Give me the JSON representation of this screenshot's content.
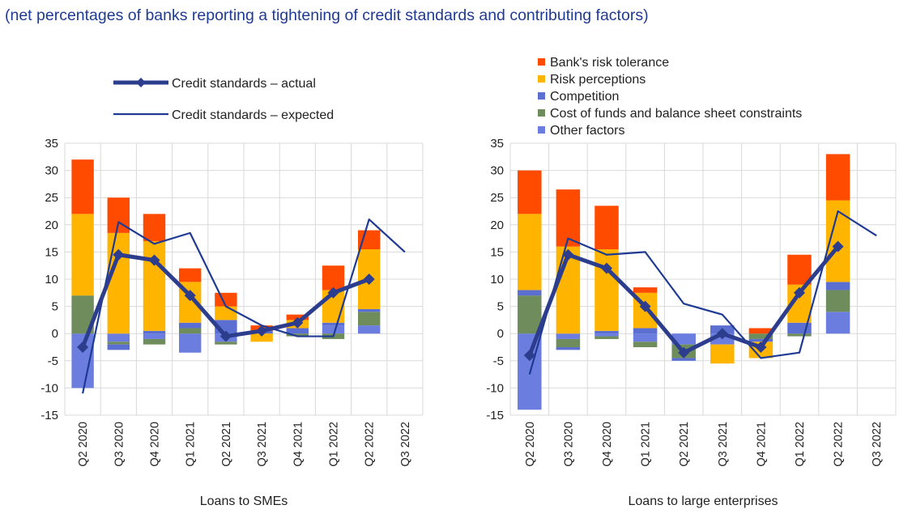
{
  "subtitle": "(net percentages of banks reporting a tightening of credit standards and contributing factors)",
  "colors": {
    "banks_risk_tolerance": "#ff4b00",
    "risk_perceptions": "#ffb400",
    "competition": "#5b6fd3",
    "cost_of_funds": "#6f8c5c",
    "other_factors": "#6b7ee0",
    "actual": "#2b3d8c",
    "expected": "#1f3a93",
    "grid": "#d9d9d9"
  },
  "legend_lines": [
    {
      "label": "Credit standards – actual",
      "style": "actual"
    },
    {
      "label": "Credit standards – expected",
      "style": "expected"
    }
  ],
  "legend_factors": [
    {
      "label": "Bank's risk tolerance",
      "color_key": "banks_risk_tolerance"
    },
    {
      "label": "Risk perceptions",
      "color_key": "risk_perceptions"
    },
    {
      "label": "Competition",
      "color_key": "competition"
    },
    {
      "label": "Cost of funds and balance sheet constraints",
      "color_key": "cost_of_funds"
    },
    {
      "label": "Other factors",
      "color_key": "other_factors"
    }
  ],
  "chart_data": [
    {
      "type": "bar",
      "xlabel": "Loans to SMEs",
      "ylim": [
        -15,
        35
      ],
      "yticks": [
        -15,
        -10,
        -5,
        0,
        5,
        10,
        15,
        20,
        25,
        30,
        35
      ],
      "grid": true,
      "categories": [
        "Q2 2020",
        "Q3 2020",
        "Q4 2020",
        "Q1 2021",
        "Q2 2021",
        "Q3 2021",
        "Q4 2021",
        "Q1 2022",
        "Q2 2022",
        "Q3 2022"
      ],
      "series": [
        {
          "name": "Other factors",
          "color_key": "other_factors",
          "values": [
            -10,
            -1.5,
            -1,
            -3.5,
            -1.5,
            0,
            0,
            1.5,
            1.5,
            null
          ]
        },
        {
          "name": "Cost of funds and balance sheet constraints",
          "color_key": "cost_of_funds",
          "values": [
            7,
            -0.5,
            -1,
            1,
            -0.5,
            0,
            -0.5,
            -1,
            2.5,
            null
          ]
        },
        {
          "name": "Competition",
          "color_key": "competition",
          "values": [
            0,
            -1,
            0.5,
            1,
            2.5,
            0.5,
            1,
            0.5,
            0.5,
            null
          ]
        },
        {
          "name": "Risk perceptions",
          "color_key": "risk_perceptions",
          "values": [
            15,
            18.5,
            16.5,
            7.5,
            2.5,
            -1.5,
            1.5,
            6,
            11,
            null
          ]
        },
        {
          "name": "Bank's risk tolerance",
          "color_key": "banks_risk_tolerance",
          "values": [
            10,
            6.5,
            5,
            2.5,
            2.5,
            1,
            1,
            4.5,
            3.5,
            null
          ]
        }
      ],
      "actual": [
        -2.5,
        14.5,
        13.5,
        7,
        -0.5,
        0.5,
        2,
        7.5,
        10,
        null
      ],
      "expected": [
        -11,
        20.5,
        16.5,
        18.5,
        5,
        1.5,
        -0.5,
        -0.5,
        21,
        15
      ]
    },
    {
      "type": "bar",
      "xlabel": "Loans to large enterprises",
      "ylim": [
        -15,
        35
      ],
      "yticks": [
        -15,
        -10,
        -5,
        0,
        5,
        10,
        15,
        20,
        25,
        30,
        35
      ],
      "grid": true,
      "categories": [
        "Q2 2020",
        "Q3 2020",
        "Q4 2020",
        "Q1 2021",
        "Q2 2021",
        "Q3 2021",
        "Q4 2021",
        "Q1 2022",
        "Q2 2022",
        "Q3 2022"
      ],
      "series": [
        {
          "name": "Other factors",
          "color_key": "other_factors",
          "values": [
            -14,
            -1,
            -0.5,
            -1.5,
            -2,
            -2,
            0,
            0,
            4,
            null
          ]
        },
        {
          "name": "Cost of funds and balance sheet constraints",
          "color_key": "cost_of_funds",
          "values": [
            7,
            -1.5,
            -0.5,
            -1,
            -2.5,
            0,
            -1,
            -0.5,
            4,
            null
          ]
        },
        {
          "name": "Competition",
          "color_key": "competition",
          "values": [
            1,
            -0.5,
            0.5,
            1,
            -0.5,
            1.5,
            -0.5,
            2,
            1.5,
            null
          ]
        },
        {
          "name": "Risk perceptions",
          "color_key": "risk_perceptions",
          "values": [
            14,
            16,
            15,
            6.5,
            0,
            -3.5,
            -3,
            7,
            15,
            null
          ]
        },
        {
          "name": "Bank's risk tolerance",
          "color_key": "banks_risk_tolerance",
          "values": [
            8,
            10.5,
            8,
            1,
            0,
            0,
            1,
            5.5,
            8.5,
            null
          ]
        }
      ],
      "actual": [
        -4,
        14.5,
        12,
        5,
        -3.5,
        0,
        -2.5,
        7.5,
        16,
        null
      ],
      "expected": [
        -7.5,
        17.5,
        14.5,
        15,
        5.5,
        3.5,
        -4.5,
        -3.5,
        22.5,
        18
      ]
    }
  ]
}
